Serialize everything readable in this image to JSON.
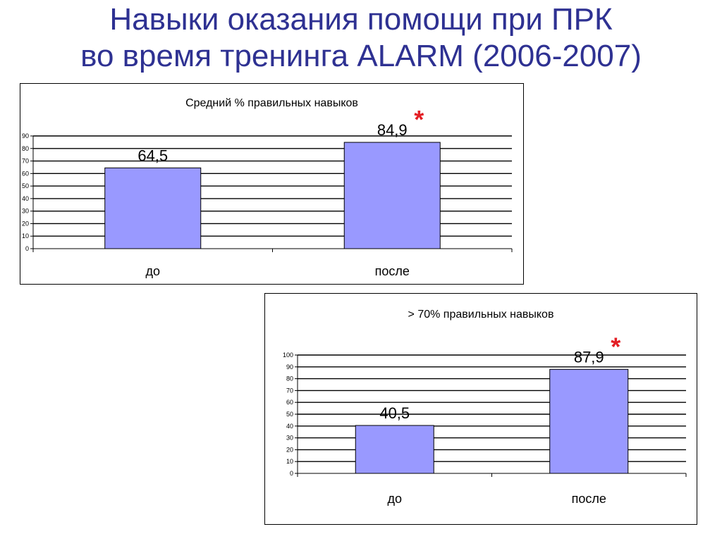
{
  "slide": {
    "title_line1": "Навыки оказания помощи при ПРК",
    "title_line2": "во время тренинга ALARM (2006-2007)"
  },
  "colors": {
    "title": "#2e3192",
    "bar": "#9999ff",
    "star": "#e31e24"
  },
  "chart_data": [
    {
      "type": "bar",
      "title": "Средний %  правильных навыков",
      "categories": [
        "до",
        "после"
      ],
      "values": [
        64.5,
        84.9
      ],
      "value_labels": [
        "64,5",
        "84,9"
      ],
      "ylim": [
        0,
        90
      ],
      "ytick_step": 10,
      "grid": true,
      "significance_marker": "*",
      "significance_on": "после"
    },
    {
      "type": "bar",
      "title": "> 70% правильных навыков",
      "categories": [
        "до",
        "после"
      ],
      "values": [
        40.5,
        87.9
      ],
      "value_labels": [
        "40,5",
        "87,9"
      ],
      "ylim": [
        0,
        100
      ],
      "ytick_step": 10,
      "grid": true,
      "significance_marker": "*",
      "significance_on": "после"
    }
  ]
}
